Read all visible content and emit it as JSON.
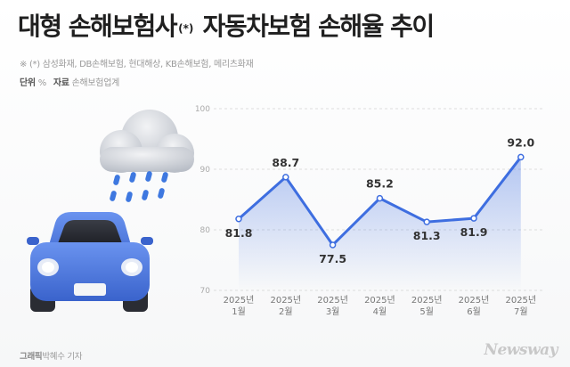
{
  "header": {
    "title_main": "대형 손해보험사",
    "title_sup": "(*)",
    "title_rest": "자동차보험 손해율 추이",
    "note": "※ (*) 삼성화재, DB손해보험, 현대해상, KB손해보험, 메리츠화재",
    "unit_label": "단위",
    "unit_value": "%",
    "source_label": "자료",
    "source_value": "손해보험업계"
  },
  "footer": {
    "credit_label": "그래픽",
    "credit_name": "박혜수 기자",
    "brand": "Newsway"
  },
  "colors": {
    "line": "#3e6ee0",
    "area": "#3e6ee0",
    "grid": "#dddddd",
    "car_body": "#4e7de6",
    "cloud": "#cfd3da",
    "rain": "#3e78e0"
  },
  "chart_data": {
    "type": "area",
    "title": "대형 손해보험사(*) 자동차보험 손해율 추이",
    "categories": [
      "2025년\n1월",
      "2025년\n2월",
      "2025년\n3월",
      "2025년\n4월",
      "2025년\n5월",
      "2025년\n6월",
      "2025년\n7월"
    ],
    "values": [
      81.8,
      88.7,
      77.5,
      85.2,
      81.3,
      81.9,
      92.0
    ],
    "data_labels": [
      "81.8",
      "88.7",
      "77.5",
      "85.2",
      "81.3",
      "81.9",
      "92.0"
    ],
    "ylim": [
      70,
      100
    ],
    "yticks": [
      70,
      80,
      90,
      100
    ],
    "grid": true,
    "legend": "none"
  }
}
